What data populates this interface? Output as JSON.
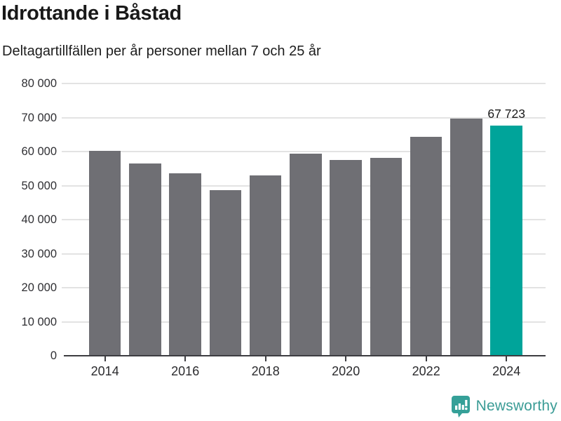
{
  "header": {
    "title": "Idrottande i Båstad",
    "subtitle": "Deltagartillfällen per år personer mellan 7 och 25 år"
  },
  "chart_data": {
    "type": "bar",
    "title": "Idrottande i Båstad",
    "subtitle": "Deltagartillfällen per år personer mellan 7 och 25 år",
    "categories": [
      2014,
      2015,
      2016,
      2017,
      2018,
      2019,
      2020,
      2021,
      2022,
      2023,
      2024
    ],
    "values": [
      60200,
      56500,
      53700,
      48700,
      52900,
      59400,
      57600,
      58100,
      64300,
      69600,
      67723
    ],
    "highlight_index": 10,
    "annotation": {
      "index": 10,
      "text": "67 723"
    },
    "ylim": [
      0,
      80000
    ],
    "yticks": [
      {
        "v": 0,
        "label": "0"
      },
      {
        "v": 10000,
        "label": "10 000"
      },
      {
        "v": 20000,
        "label": "20 000"
      },
      {
        "v": 30000,
        "label": "30 000"
      },
      {
        "v": 40000,
        "label": "40 000"
      },
      {
        "v": 50000,
        "label": "50 000"
      },
      {
        "v": 60000,
        "label": "60 000"
      },
      {
        "v": 70000,
        "label": "70 000"
      },
      {
        "v": 80000,
        "label": "80 000"
      }
    ],
    "xticks": [
      2014,
      2016,
      2018,
      2020,
      2022,
      2024
    ],
    "grid": true,
    "legend": false,
    "colors": {
      "bar": "#6f6f74",
      "highlight": "#00a49a",
      "gridline": "#e3e3e3",
      "axis": "#3d3d41",
      "tick_label": "#2f2f33",
      "text": "#191919"
    }
  },
  "footer": {
    "brand": "Newsworthy",
    "logo_icon": "newsworthy-logo",
    "brand_color": "#3b9c96",
    "logo_color": "#35a098"
  }
}
